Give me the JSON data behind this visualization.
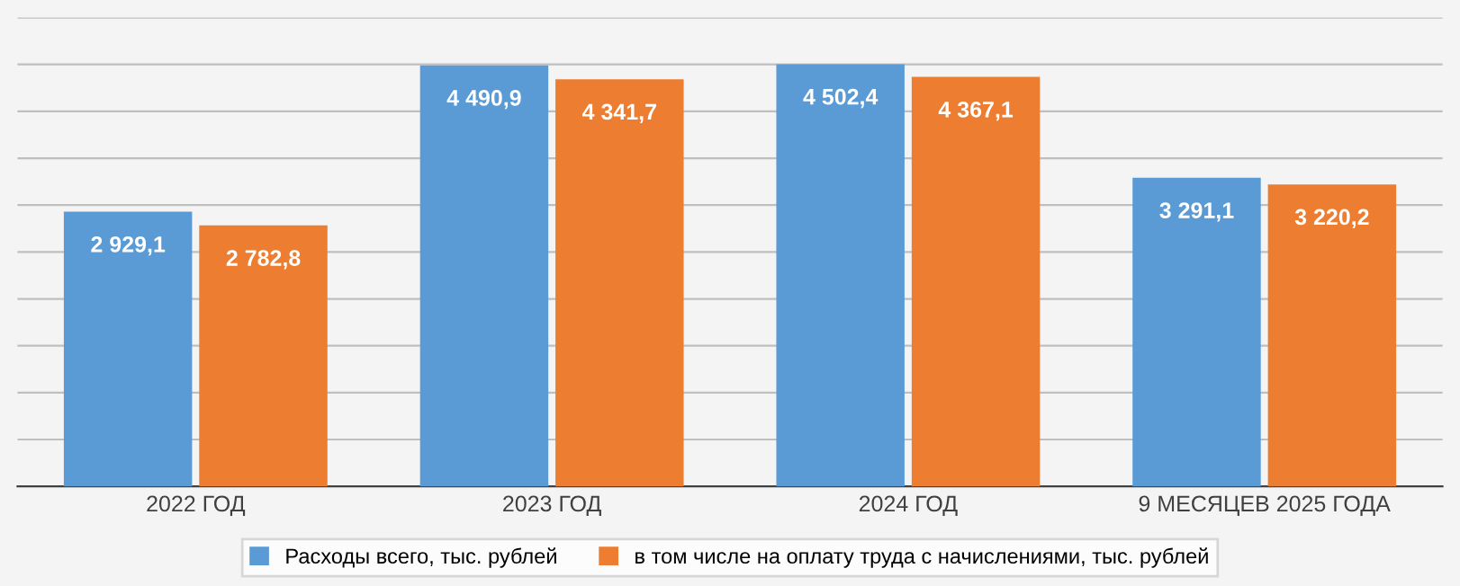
{
  "chart_data": {
    "type": "bar",
    "categories": [
      "2022 ГОД",
      "2023 ГОД",
      "2024 ГОД",
      "9 МЕСЯЦЕВ 2025 ГОДА"
    ],
    "series": [
      {
        "name": "Расходы всего, тыс. рублей",
        "color": "#5b9bd5",
        "values": [
          2929.1,
          4490.9,
          4502.4,
          3291.1
        ],
        "value_labels": [
          "2 929,1",
          "4 490,9",
          "4 502,4",
          "3 291,1"
        ]
      },
      {
        "name": "в том числе на оплату труда с начислениями, тыс. рублей",
        "color": "#ed7d31",
        "values": [
          2782.8,
          4341.7,
          4367.1,
          3220.2
        ],
        "value_labels": [
          "2 782,8",
          "4 341,7",
          "4 367,1",
          "3 220,2"
        ]
      }
    ],
    "ylim": [
      0,
      5000
    ],
    "yticks": [
      {
        "value": 0,
        "label": null
      },
      {
        "value": 500,
        "label": null
      },
      {
        "value": 1000,
        "label": null
      },
      {
        "value": 1500,
        "label": null
      },
      {
        "value": 2000,
        "label": null
      },
      {
        "value": 2500,
        "label": null
      },
      {
        "value": 3000,
        "label": null
      },
      {
        "value": 3500,
        "label": null
      },
      {
        "value": 4000,
        "label": null
      },
      {
        "value": 4500,
        "label": null
      },
      {
        "value": 5000,
        "label": null
      }
    ],
    "tick_labels": "x",
    "grid": "y",
    "legend": "bottom"
  }
}
